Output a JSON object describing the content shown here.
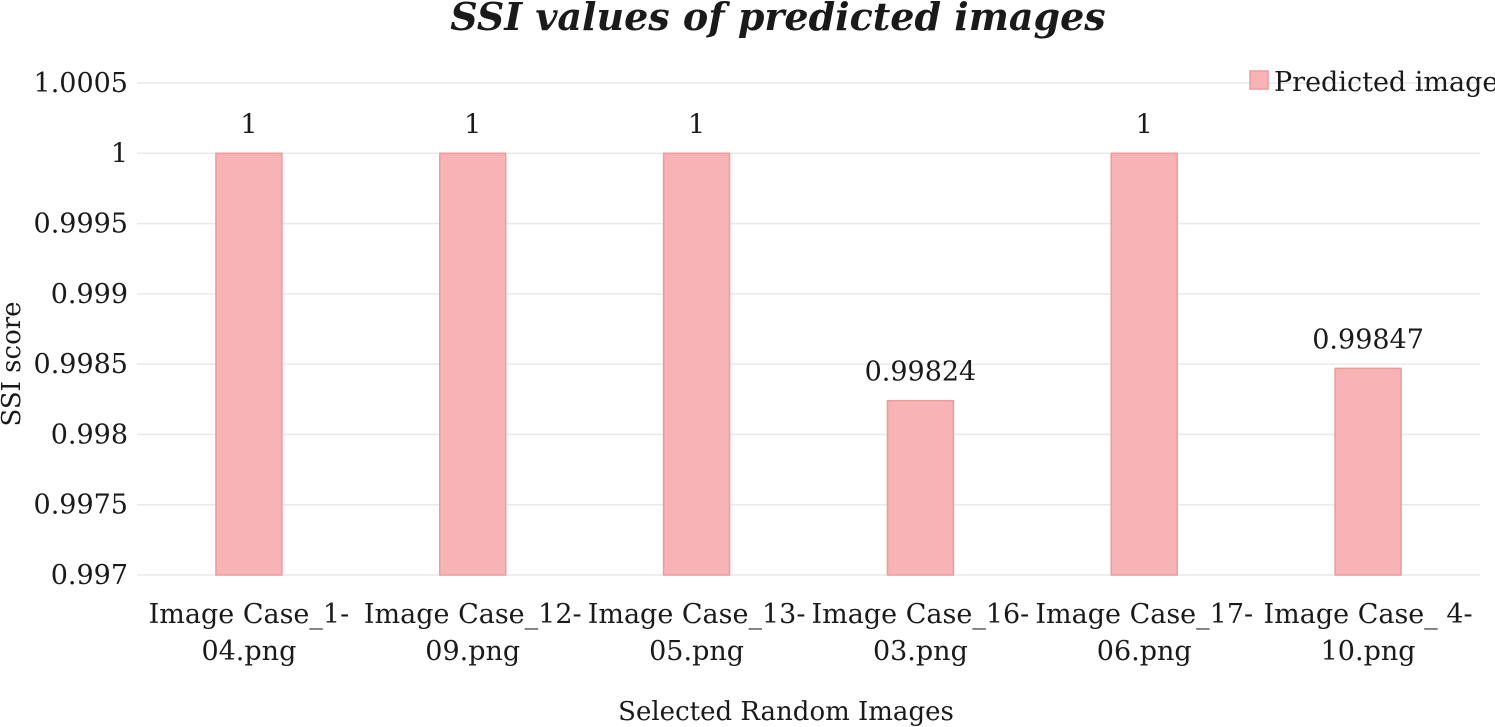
{
  "chart_data": {
    "type": "bar",
    "title": "SSI values of predicted images",
    "xlabel": "Selected Random Images",
    "ylabel": "SSI score",
    "ylim": [
      0.997,
      1.0005
    ],
    "yticks": [
      "0.997",
      "0.9975",
      "0.998",
      "0.9985",
      "0.999",
      "0.9995",
      "1",
      "1.0005"
    ],
    "ytick_values": [
      0.997,
      0.9975,
      0.998,
      0.9985,
      0.999,
      0.9995,
      1.0,
      1.0005
    ],
    "categories": [
      [
        "Image Case_1-",
        "04.png"
      ],
      [
        "Image Case_12-",
        "09.png"
      ],
      [
        "Image Case_13-",
        "05.png"
      ],
      [
        "Image Case_16-",
        "03.png"
      ],
      [
        "Image Case_17-",
        "06.png"
      ],
      [
        "Image Case_ 4-",
        "10.png"
      ]
    ],
    "series": [
      {
        "name": "Predicted image",
        "values": [
          1,
          1,
          1,
          0.99824,
          1,
          0.99847
        ],
        "labels": [
          "1",
          "1",
          "1",
          "0.99824",
          "1",
          "0.99847"
        ]
      }
    ],
    "grid": true,
    "legend_position": "top-right",
    "colors": {
      "bar_fill": "#f7b3b5",
      "bar_stroke": "#ee9b9e",
      "grid": "#e9e9e9"
    }
  }
}
